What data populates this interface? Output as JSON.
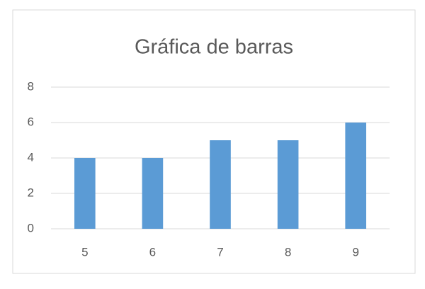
{
  "chart_data": {
    "type": "bar",
    "title": "Gráfica de barras",
    "categories": [
      "5",
      "6",
      "7",
      "8",
      "9"
    ],
    "values": [
      4,
      4,
      5,
      5,
      6
    ],
    "color": "#5b9bd5",
    "ylim": [
      0,
      8
    ],
    "yticks": [
      0,
      2,
      4,
      6,
      8
    ],
    "grid": true
  }
}
